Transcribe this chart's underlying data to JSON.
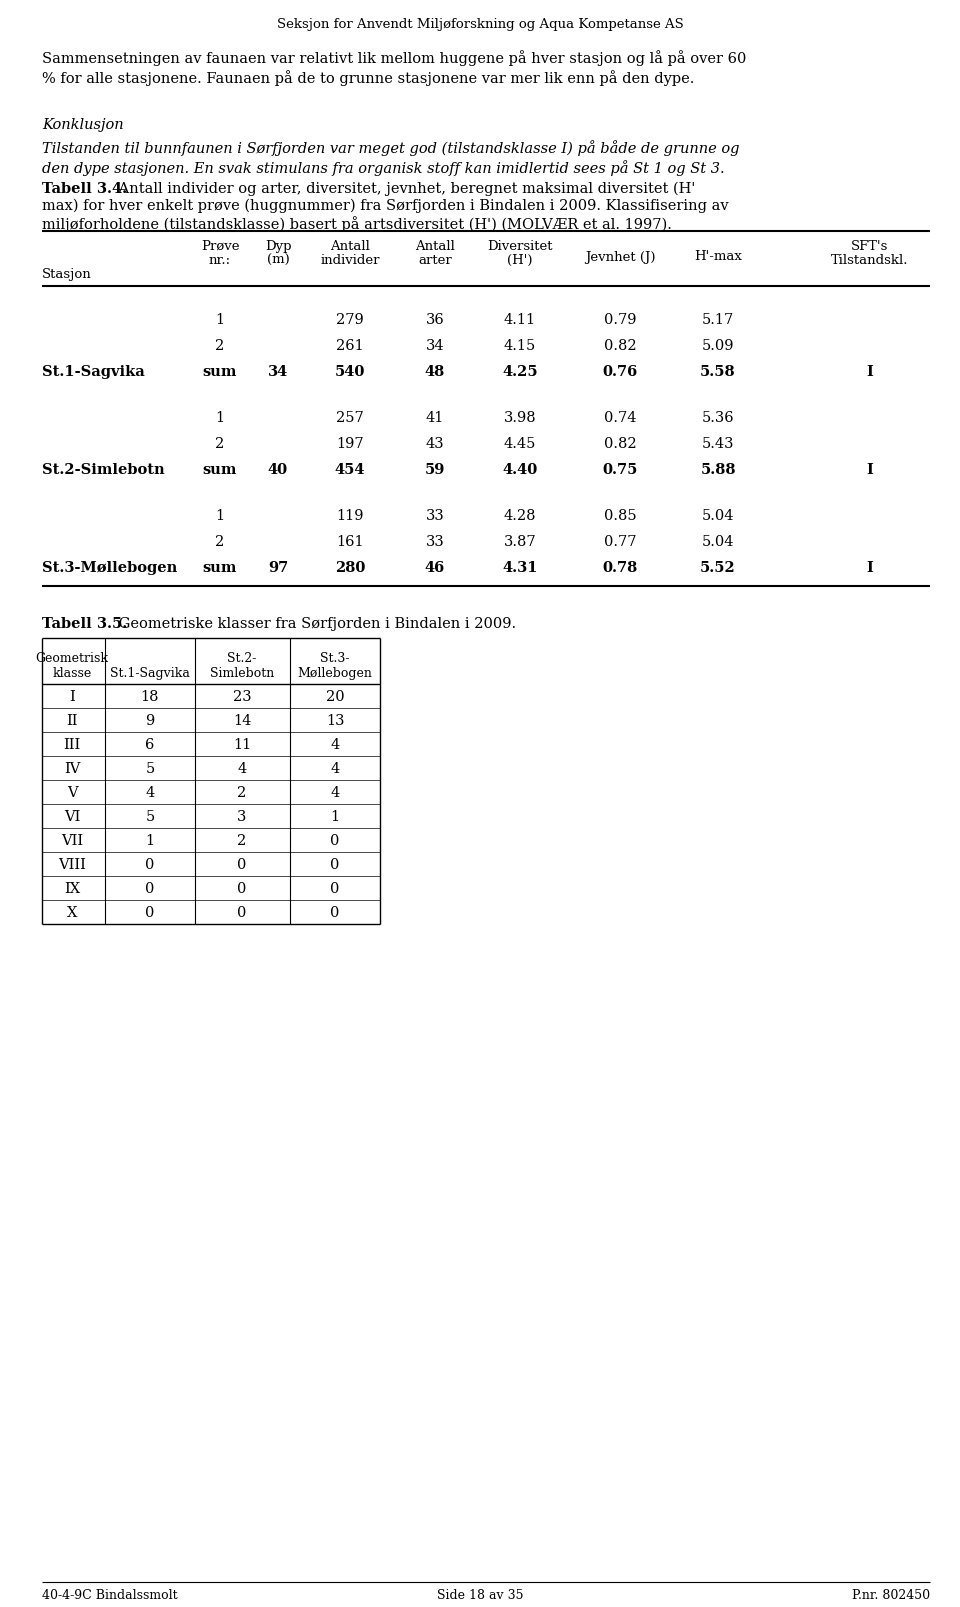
{
  "header": "Seksjon for Anvendt Miljøforskning og Aqua Kompetanse AS",
  "body_text_line1": "Sammensetningen av faunaen var relativt lik mellom huggene på hver stasjon og lå på over 60",
  "body_text_line2": "% for alle stasjonene. Faunaen på de to grunne stasjonene var mer lik enn på den dype.",
  "konklusjon_label": "Konklusjon",
  "konklusjon_line1": "Tilstanden til bunnfaunen i Sørfjorden var meget god (tilstandsklasse I) på både de grunne og",
  "konklusjon_line2": "den dype stasjonen. En svak stimulans fra organisk stoff kan imidlertid sees på St 1 og St 3.",
  "tabell34_bold": "Tabell 3.4.",
  "tabell34_cap1": " Antall individer og arter, diversitet, jevnhet, beregnet maksimal diversitet (H'",
  "tabell34_cap2": "max) for hver enkelt prøve (huggnummer) fra Sørfjorden i Bindalen i 2009. Klassifisering av",
  "tabell34_cap3": "miljøforholdene (tilstandsklasse) basert på artsdiversitet (H') (MOLVÆR et al. 1997).",
  "table34_rows": [
    [
      "",
      "1",
      "",
      "279",
      "36",
      "4.11",
      "0.79",
      "5.17",
      ""
    ],
    [
      "",
      "2",
      "",
      "261",
      "34",
      "4.15",
      "0.82",
      "5.09",
      ""
    ],
    [
      "St.1-Sagvika",
      "sum",
      "34",
      "540",
      "48",
      "4.25",
      "0.76",
      "5.58",
      "I"
    ],
    [
      "",
      "1",
      "",
      "257",
      "41",
      "3.98",
      "0.74",
      "5.36",
      ""
    ],
    [
      "",
      "2",
      "",
      "197",
      "43",
      "4.45",
      "0.82",
      "5.43",
      ""
    ],
    [
      "St.2-Simlebotn",
      "sum",
      "40",
      "454",
      "59",
      "4.40",
      "0.75",
      "5.88",
      "I"
    ],
    [
      "",
      "1",
      "",
      "119",
      "33",
      "4.28",
      "0.85",
      "5.04",
      ""
    ],
    [
      "",
      "2",
      "",
      "161",
      "33",
      "3.87",
      "0.77",
      "5.04",
      ""
    ],
    [
      "St.3-Møllebogen",
      "sum",
      "97",
      "280",
      "46",
      "4.31",
      "0.78",
      "5.52",
      "I"
    ]
  ],
  "tabell35_bold": "Tabell 3.5.",
  "tabell35_text": " Geometriske klasser fra Sørfjorden i Bindalen i 2009.",
  "table35_rows": [
    [
      "I",
      "18",
      "23",
      "20"
    ],
    [
      "II",
      "9",
      "14",
      "13"
    ],
    [
      "III",
      "6",
      "11",
      "4"
    ],
    [
      "IV",
      "5",
      "4",
      "4"
    ],
    [
      "V",
      "4",
      "2",
      "4"
    ],
    [
      "VI",
      "5",
      "3",
      "1"
    ],
    [
      "VII",
      "1",
      "2",
      "0"
    ],
    [
      "VIII",
      "0",
      "0",
      "0"
    ],
    [
      "IX",
      "0",
      "0",
      "0"
    ],
    [
      "X",
      "0",
      "0",
      "0"
    ]
  ],
  "footer_left": "40-4-9C Bindalssmolt",
  "footer_center": "Side 18 av 35",
  "footer_right": "P.nr. 802450"
}
